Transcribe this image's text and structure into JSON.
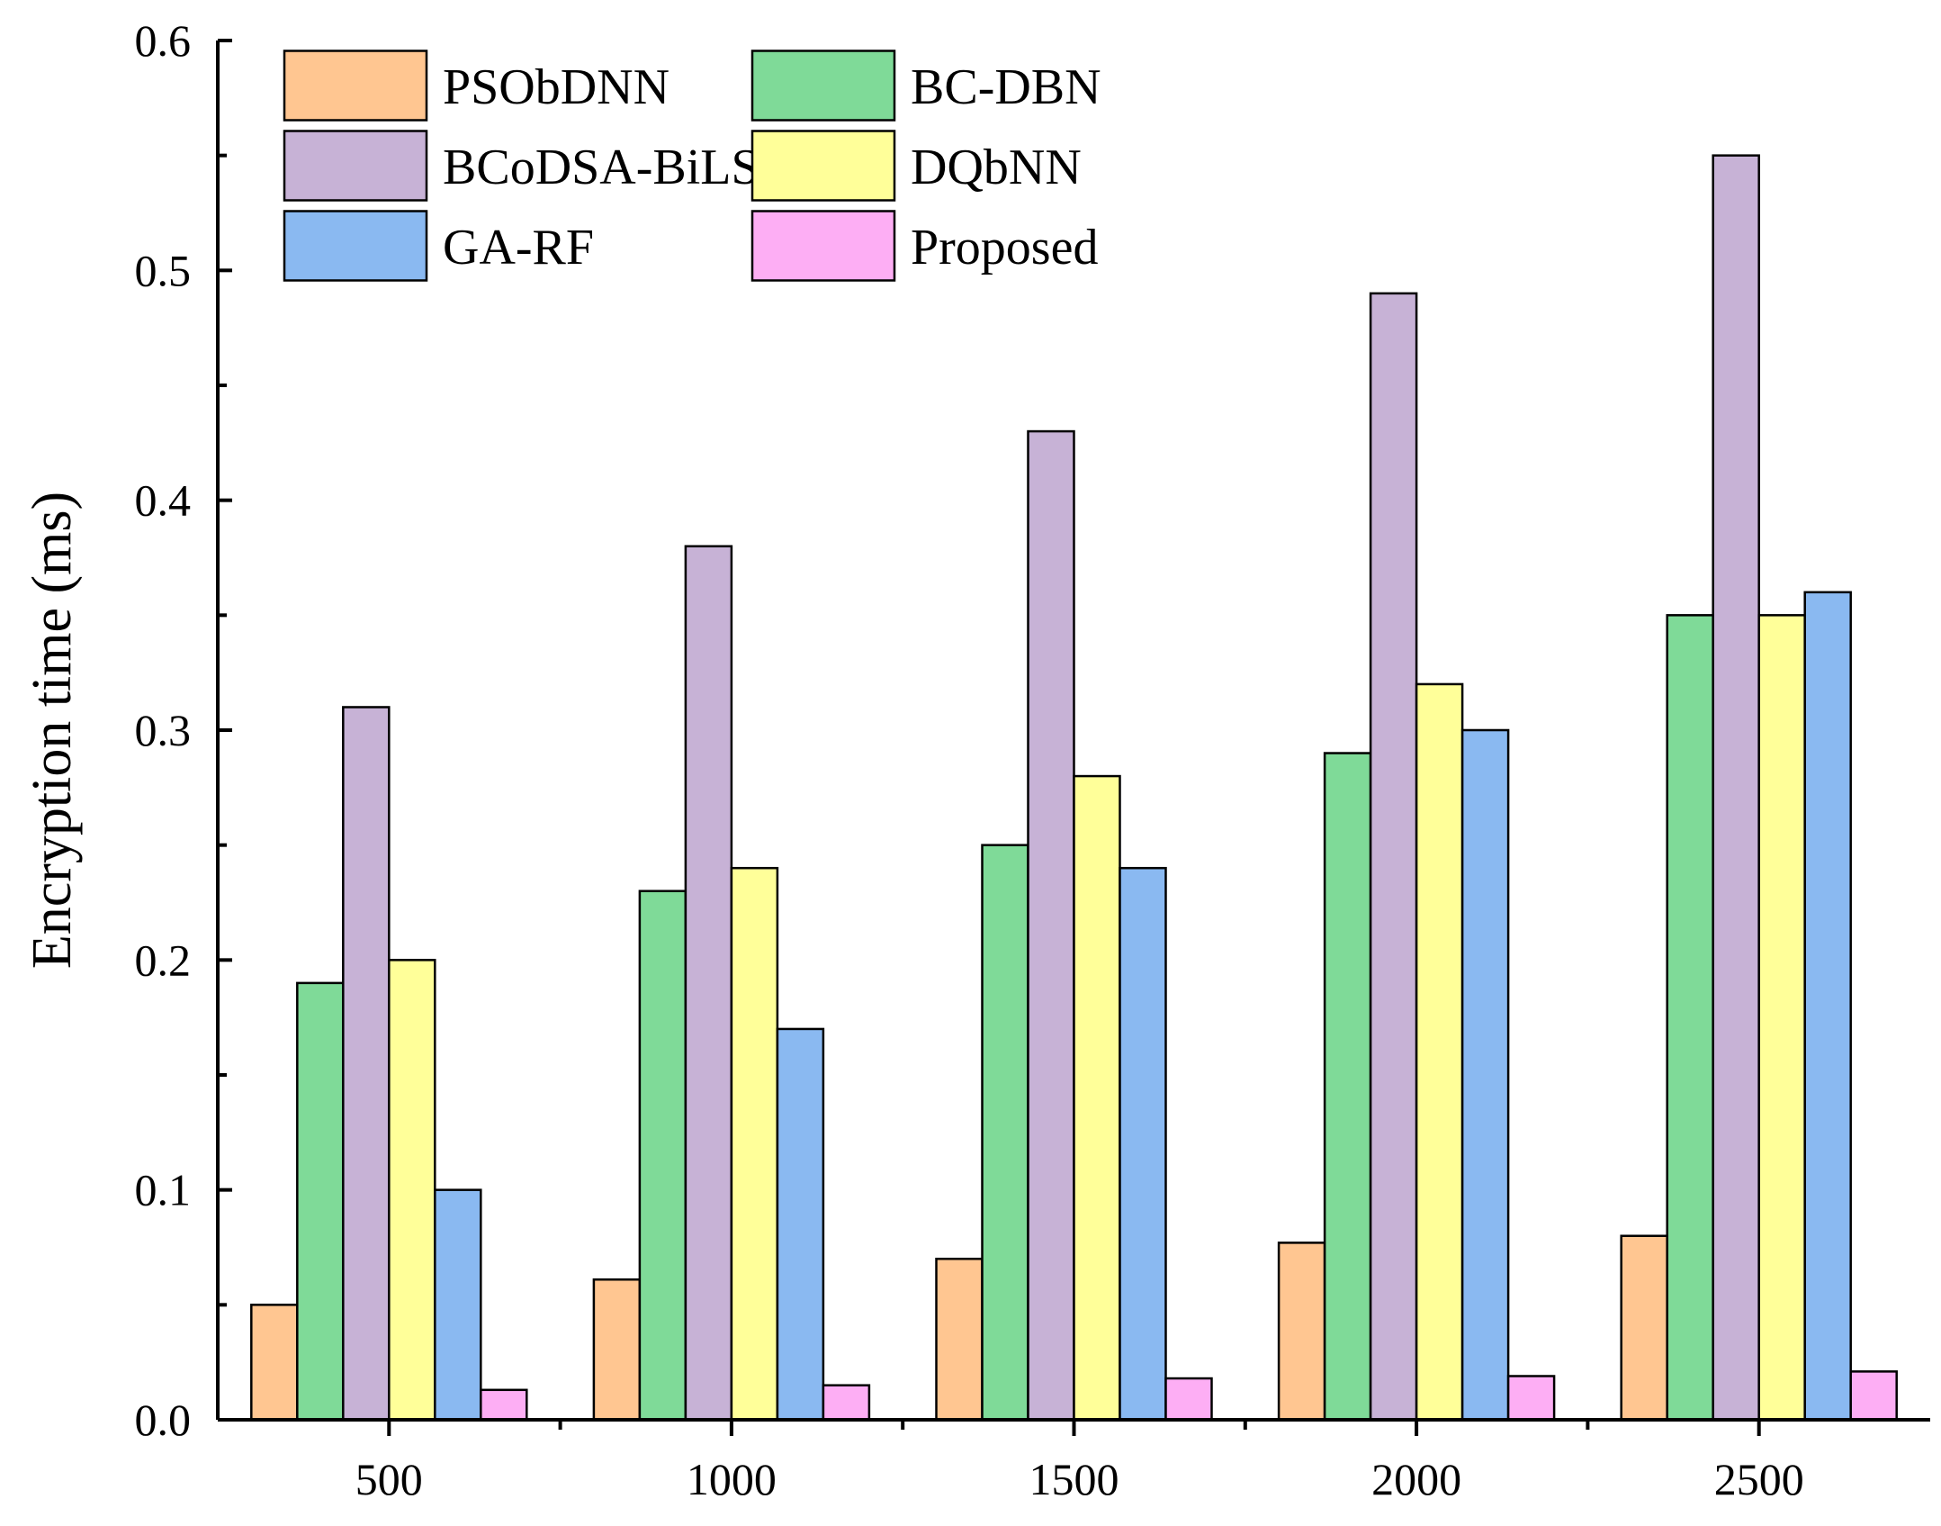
{
  "chart_data": {
    "type": "bar",
    "title": "",
    "xlabel": "",
    "ylabel": "Encryption time (ms)",
    "categories": [
      "500",
      "1000",
      "1500",
      "2000",
      "2500"
    ],
    "ylim": [
      0,
      0.6
    ],
    "yticks": [
      "0.0",
      "0.1",
      "0.2",
      "0.3",
      "0.4",
      "0.5",
      "0.6"
    ],
    "ytick_values": [
      0,
      0.1,
      0.2,
      0.3,
      0.4,
      0.5,
      0.6
    ],
    "legend_position": "top-left",
    "series": [
      {
        "name": "PSObDNN",
        "color": "#FFC691",
        "values": [
          0.05,
          0.061,
          0.07,
          0.077,
          0.08
        ]
      },
      {
        "name": "BC-DBN",
        "color": "#7FDA98",
        "values": [
          0.19,
          0.23,
          0.25,
          0.29,
          0.35
        ]
      },
      {
        "name": "BCoDSA-BiLSTM",
        "color": "#C7B2D6",
        "values": [
          0.31,
          0.38,
          0.43,
          0.49,
          0.55
        ]
      },
      {
        "name": "DQbNN",
        "color": "#FFFF99",
        "values": [
          0.2,
          0.24,
          0.28,
          0.32,
          0.35
        ]
      },
      {
        "name": "GA-RF",
        "color": "#8AB9F1",
        "values": [
          0.1,
          0.17,
          0.24,
          0.3,
          0.36
        ]
      },
      {
        "name": "Proposed",
        "color": "#FDAEF4",
        "values": [
          0.013,
          0.015,
          0.018,
          0.019,
          0.021
        ]
      }
    ]
  }
}
